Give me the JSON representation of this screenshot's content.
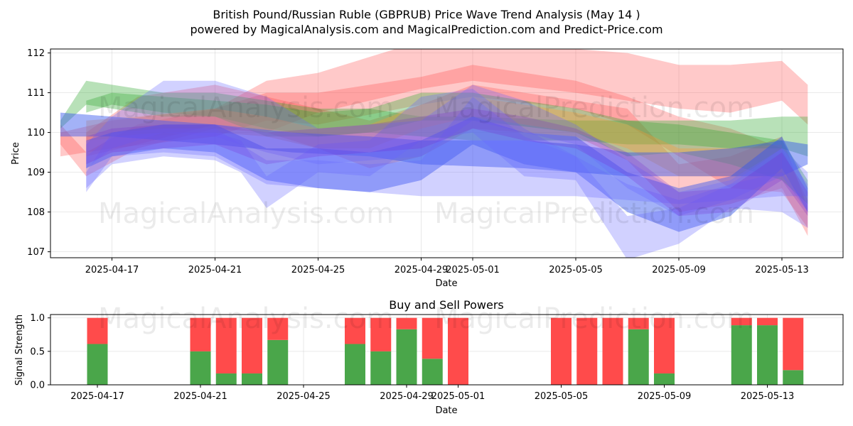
{
  "title_line1": "British Pound/Russian Ruble (GBPRUB) Price Wave Trend Analysis (May 14 )",
  "title_line2": "powered by MagicalAnalysis.com and MagicalPrediction.com and Predict-Price.com",
  "watermarks": [
    "MagicalAnalysis.com",
    "MagicalPrediction.com"
  ],
  "chart_data": [
    {
      "type": "area",
      "title": "",
      "xlabel": "Date",
      "ylabel": "Price",
      "x_ticks": [
        "2025-04-17",
        "2025-04-21",
        "2025-04-25",
        "2025-04-29",
        "2025-05-01",
        "2025-05-05",
        "2025-05-09",
        "2025-05-13"
      ],
      "x_tick_day_index": [
        2,
        6,
        10,
        14,
        16,
        20,
        24,
        28
      ],
      "x_start": "2025-04-15",
      "y_ticks": [
        107,
        108,
        109,
        110,
        111,
        112
      ],
      "ylim": [
        106.85,
        112.1
      ],
      "grid": true,
      "series": [
        {
          "color": "#ff4d4d",
          "opacity": 0.3,
          "bands": [
            {
              "x": [
                0,
                1,
                3,
                6,
                8,
                10,
                14,
                16,
                20,
                22,
                24,
                26,
                28,
                29
              ],
              "lo": [
                109.7,
                108.9,
                109.6,
                110.1,
                110.0,
                110.5,
                111.1,
                111.3,
                111.0,
                110.8,
                110.6,
                110.5,
                110.8,
                110.2
              ],
              "hi": [
                110.2,
                109.5,
                110.2,
                110.6,
                111.3,
                111.5,
                112.3,
                112.4,
                112.1,
                112.0,
                111.7,
                111.7,
                111.8,
                111.2
              ]
            },
            {
              "x": [
                0,
                2,
                6,
                8,
                10,
                14,
                16,
                20,
                22,
                24,
                26,
                28,
                29
              ],
              "lo": [
                109.4,
                109.6,
                109.9,
                110.3,
                110.2,
                110.7,
                110.9,
                110.6,
                110.2,
                109.4,
                108.6,
                108.5,
                107.6
              ],
              "hi": [
                110.0,
                110.3,
                110.6,
                111.0,
                111.0,
                111.4,
                111.7,
                111.3,
                110.9,
                110.4,
                110.1,
                109.6,
                108.3
              ]
            },
            {
              "x": [
                1,
                3,
                6,
                8,
                10,
                12,
                14,
                16,
                20,
                22,
                24,
                26,
                28,
                29
              ],
              "lo": [
                109.4,
                109.7,
                110.2,
                110.0,
                109.6,
                109.1,
                109.4,
                110.1,
                109.9,
                109.3,
                108.0,
                108.2,
                108.6,
                107.4
              ],
              "hi": [
                110.0,
                110.9,
                111.2,
                110.9,
                110.6,
                110.3,
                110.7,
                111.2,
                110.8,
                110.6,
                109.2,
                109.4,
                109.9,
                108.1
              ]
            }
          ]
        },
        {
          "color": "#33aa33",
          "opacity": 0.35,
          "bands": [
            {
              "x": [
                0,
                1,
                4,
                6,
                8,
                10,
                12,
                14,
                16,
                20,
                22,
                24,
                26,
                28,
                29
              ],
              "lo": [
                110.1,
                110.7,
                110.4,
                110.4,
                110.1,
                109.9,
                110.0,
                109.9,
                109.8,
                109.8,
                109.7,
                109.7,
                109.6,
                109.6,
                109.4
              ],
              "hi": [
                110.3,
                111.3,
                111.0,
                111.0,
                110.8,
                110.6,
                110.6,
                110.4,
                110.4,
                110.3,
                110.3,
                110.3,
                110.3,
                110.4,
                110.4
              ]
            },
            {
              "x": [
                1,
                2,
                4,
                6,
                8,
                10,
                12,
                14,
                16,
                20,
                22,
                24,
                26,
                28,
                29
              ],
              "lo": [
                110.5,
                110.7,
                110.5,
                110.4,
                109.9,
                109.9,
                110.0,
                110.3,
                110.3,
                110.0,
                109.4,
                109.5,
                109.2,
                108.8,
                108.2
              ],
              "hi": [
                110.8,
                111.0,
                110.9,
                110.8,
                110.7,
                110.5,
                110.6,
                111.0,
                111.0,
                110.6,
                110.3,
                110.2,
                110.0,
                109.8,
                108.8
              ]
            }
          ]
        },
        {
          "color": "#ff9933",
          "opacity": 0.32,
          "bands": [
            {
              "x": [
                1,
                3,
                6,
                8,
                10,
                12,
                14,
                16,
                20,
                22,
                24,
                26,
                28
              ],
              "lo": [
                109.8,
                109.9,
                110.0,
                109.9,
                109.6,
                109.6,
                110.1,
                110.4,
                110.0,
                109.6,
                108.9,
                108.9,
                108.9
              ],
              "hi": [
                110.3,
                110.4,
                110.6,
                110.4,
                110.1,
                110.2,
                110.7,
                110.9,
                110.5,
                110.2,
                109.6,
                109.6,
                109.7
              ]
            }
          ]
        },
        {
          "color": "#3355ee",
          "opacity": 0.45,
          "bands": [
            {
              "x": [
                0,
                2,
                6,
                9,
                12,
                14,
                18,
                20,
                22,
                24,
                26,
                28,
                29
              ],
              "lo": [
                109.9,
                109.9,
                109.7,
                109.5,
                109.4,
                109.2,
                109.1,
                109.0,
                108.9,
                108.9,
                108.9,
                108.9,
                109.2
              ],
              "hi": [
                110.5,
                110.4,
                110.2,
                110.0,
                109.9,
                109.8,
                109.8,
                109.7,
                109.5,
                109.5,
                109.6,
                109.8,
                109.7
              ]
            },
            {
              "x": [
                1,
                2,
                4,
                6,
                8,
                10,
                12,
                14,
                16,
                18,
                20,
                22,
                24,
                26,
                28,
                29
              ],
              "lo": [
                109.1,
                109.4,
                109.6,
                109.5,
                108.8,
                108.6,
                108.5,
                108.8,
                109.7,
                109.2,
                109.0,
                108.0,
                107.5,
                107.9,
                109.1,
                108.0
              ],
              "hi": [
                109.8,
                110.0,
                110.2,
                110.2,
                109.6,
                109.6,
                109.5,
                109.8,
                110.4,
                110.0,
                109.9,
                109.0,
                108.6,
                108.9,
                109.9,
                108.6
              ]
            }
          ]
        },
        {
          "color": "#6666ff",
          "opacity": 0.3,
          "bands": [
            {
              "x": [
                1,
                2,
                4,
                6,
                8,
                10,
                12,
                14,
                16,
                18,
                20,
                22,
                24,
                26,
                28,
                29
              ],
              "lo": [
                108.5,
                109.4,
                109.5,
                109.4,
                108.7,
                108.6,
                108.5,
                108.4,
                108.4,
                108.4,
                108.4,
                108.3,
                108.2,
                108.3,
                108.4,
                108.4
              ],
              "hi": [
                109.0,
                110.0,
                110.1,
                110.1,
                109.3,
                109.3,
                109.2,
                109.3,
                110.9,
                109.9,
                109.4,
                108.7,
                108.3,
                108.7,
                109.6,
                109.0
              ]
            },
            {
              "x": [
                1,
                2,
                4,
                6,
                7,
                8,
                10,
                12,
                14,
                16,
                18,
                20,
                22,
                24,
                26,
                28,
                29
              ],
              "lo": [
                108.6,
                109.2,
                109.4,
                109.3,
                109.0,
                108.1,
                109.0,
                108.9,
                109.8,
                110.0,
                108.9,
                108.8,
                106.8,
                107.2,
                108.1,
                108.0,
                107.6
              ],
              "hi": [
                109.4,
                109.9,
                110.0,
                110.0,
                109.8,
                108.9,
                109.7,
                109.8,
                110.9,
                111.1,
                110.1,
                109.4,
                107.9,
                108.1,
                108.7,
                109.0,
                108.2
              ]
            },
            {
              "x": [
                1,
                2,
                4,
                6,
                8,
                10,
                12,
                14,
                16,
                18,
                20,
                22,
                24,
                26,
                28,
                29
              ],
              "lo": [
                109.1,
                109.6,
                110.0,
                109.9,
                109.5,
                109.2,
                109.3,
                109.4,
                110.3,
                110.0,
                109.7,
                108.6,
                107.9,
                108.3,
                108.9,
                108.0
              ],
              "hi": [
                109.7,
                110.4,
                111.3,
                111.3,
                110.9,
                110.1,
                110.2,
                110.3,
                111.2,
                110.8,
                110.2,
                109.3,
                108.5,
                108.8,
                109.6,
                108.7
              ]
            }
          ]
        },
        {
          "color": "#7722cc",
          "opacity": 0.22,
          "bands": [
            {
              "x": [
                1,
                2,
                4,
                6,
                8,
                10,
                12,
                14,
                16,
                18,
                20,
                22,
                24,
                26,
                28,
                29
              ],
              "lo": [
                109.2,
                109.5,
                109.6,
                109.7,
                109.2,
                109.4,
                109.5,
                109.6,
                110.1,
                109.8,
                109.6,
                108.9,
                107.9,
                108.0,
                108.8,
                107.9
              ],
              "hi": [
                109.9,
                110.1,
                110.2,
                110.2,
                110.0,
                110.1,
                110.2,
                110.4,
                110.6,
                110.4,
                110.1,
                109.5,
                108.5,
                108.6,
                109.5,
                108.5
              ]
            }
          ]
        }
      ]
    },
    {
      "type": "bar",
      "title": "Buy and Sell Powers",
      "xlabel": "Date",
      "ylabel": "Signal Strength",
      "x_ticks": [
        "2025-04-17",
        "2025-04-21",
        "2025-04-25",
        "2025-04-29",
        "2025-05-01",
        "2025-05-05",
        "2025-05-09",
        "2025-05-13"
      ],
      "x_tick_day_index": [
        2,
        6,
        10,
        14,
        16,
        20,
        24,
        28
      ],
      "y_ticks": [
        "0.0",
        "0.5",
        "1.0"
      ],
      "ylim": [
        0,
        1.05
      ],
      "grid": true,
      "colors": {
        "buy": "#4aa64a",
        "sell": "#ff4b4b"
      },
      "day_index": [
        2,
        6,
        7,
        8,
        9,
        12,
        13,
        14,
        15,
        16,
        20,
        21,
        22,
        23,
        24,
        27,
        28,
        29
      ],
      "buy": [
        0.61,
        0.5,
        0.17,
        0.17,
        0.67,
        0.61,
        0.5,
        0.83,
        0.39,
        0.0,
        0.0,
        0.0,
        0.0,
        0.83,
        0.17,
        0.89,
        0.89,
        0.22
      ],
      "sell": [
        0.39,
        0.5,
        0.83,
        0.83,
        0.33,
        0.39,
        0.5,
        0.17,
        0.61,
        1.0,
        1.0,
        1.0,
        1.0,
        0.17,
        0.83,
        0.11,
        0.11,
        0.78
      ]
    }
  ]
}
